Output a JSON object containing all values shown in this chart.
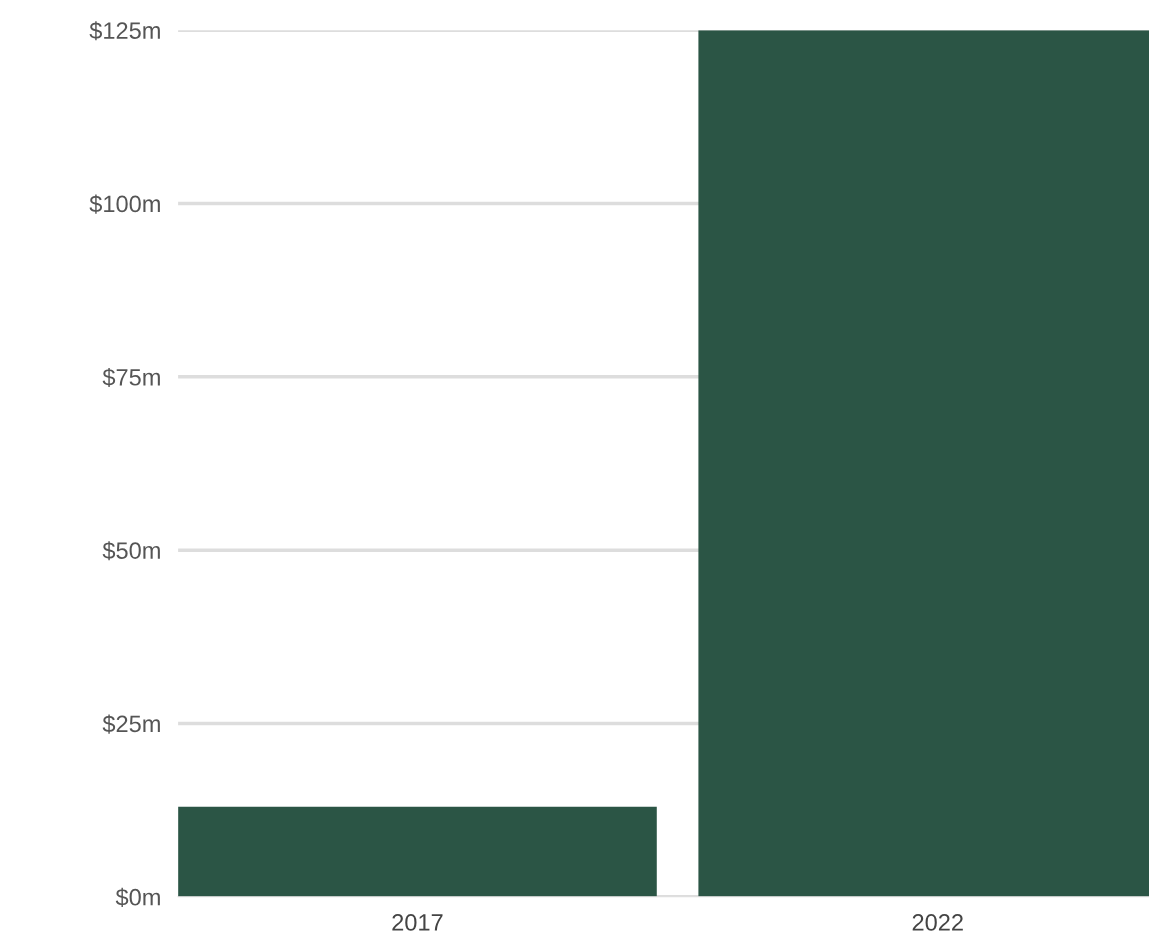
{
  "chart_data": {
    "type": "bar",
    "categories": [
      "2017",
      "2022"
    ],
    "values": [
      13,
      125
    ],
    "color": "#2b5545",
    "ylim": [
      0,
      125
    ],
    "yticks": [
      {
        "value": 0,
        "label": "$0m"
      },
      {
        "value": 25,
        "label": "$25m"
      },
      {
        "value": 50,
        "label": "$50m"
      },
      {
        "value": 75,
        "label": "$75m"
      },
      {
        "value": 100,
        "label": "$100m"
      },
      {
        "value": 125,
        "label": "$125m"
      }
    ],
    "grid": "y",
    "legend": false
  }
}
